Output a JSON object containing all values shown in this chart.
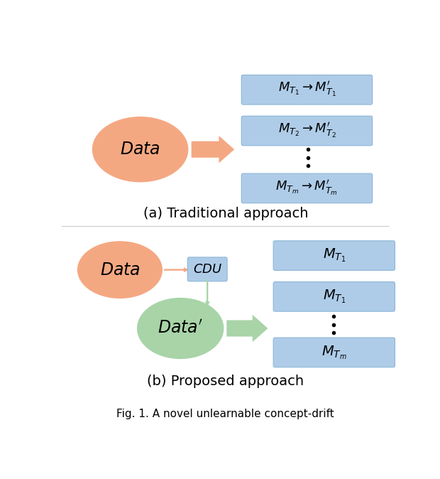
{
  "fig_width": 6.2,
  "fig_height": 6.74,
  "bg_color": "#ffffff",
  "salmon_color": "#F4A882",
  "green_color": "#A8D4A8",
  "blue_box_color": "#AECCE8",
  "blue_box_edge": "#8BB5D8",
  "arrow_salmon": "#F4A882",
  "arrow_green": "#A8D4A8",
  "caption_a": "(a) Traditional approach",
  "caption_b": "(b) Proposed approach",
  "fig_caption": "Fig. 1. A novel unlearnable concept-drift"
}
